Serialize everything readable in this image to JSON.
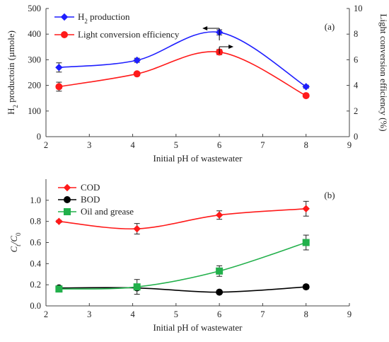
{
  "chart_data": [
    {
      "type": "line",
      "panel_label": "(a)",
      "xlabel": "Initial pH of wastewater",
      "ylabel": "H",
      "ylabel_sub": "2",
      "ylabel_rest": " productoin (µmole)",
      "y2label": "Light conversion efficiency (%)",
      "xlim": [
        2,
        9
      ],
      "xticks": [
        2,
        3,
        4,
        5,
        6,
        7,
        8,
        9
      ],
      "ylim": [
        0,
        500
      ],
      "yticks": [
        0,
        100,
        200,
        300,
        400,
        500
      ],
      "y2lim": [
        0,
        10
      ],
      "y2ticks": [
        0,
        2,
        4,
        6,
        8,
        10
      ],
      "legend_position": "top-left",
      "series": [
        {
          "name": "H",
          "name_sub": "2",
          "name_rest": " production",
          "axis": "left",
          "color": "#1f1fff",
          "marker": "diamond",
          "x": [
            2.3,
            4.1,
            6.0,
            8.0
          ],
          "y": [
            270,
            298,
            407,
            195
          ],
          "err": [
            18,
            8,
            10,
            6
          ]
        },
        {
          "name": "Light conversion efficiency",
          "axis": "right",
          "color": "#ff1a1a",
          "marker": "circle",
          "x": [
            2.3,
            4.1,
            6.0,
            8.0
          ],
          "y": [
            3.9,
            4.9,
            6.6,
            3.2
          ],
          "err": [
            0.35,
            0.15,
            0.2,
            0.1
          ]
        }
      ]
    },
    {
      "type": "line",
      "panel_label": "(b)",
      "xlabel": "Initial pH of wastewater",
      "ylabel": "C",
      "ylabel_sub1": "t",
      "ylabel_mid": "/C",
      "ylabel_sub2": "0",
      "xlim": [
        2,
        9
      ],
      "xticks": [
        2,
        3,
        4,
        5,
        6,
        7,
        8,
        9
      ],
      "ylim": [
        0,
        1.2
      ],
      "yticks": [
        "0.0",
        "0.2",
        "0.4",
        "0.6",
        "0.8",
        "1.0"
      ],
      "legend_position": "top-left",
      "series": [
        {
          "name": "COD",
          "color": "#ff1a1a",
          "marker": "diamond",
          "x": [
            2.3,
            4.1,
            6.0,
            8.0
          ],
          "y": [
            0.8,
            0.73,
            0.86,
            0.92
          ],
          "err": [
            0.01,
            0.05,
            0.04,
            0.07
          ]
        },
        {
          "name": "BOD",
          "color": "#000000",
          "marker": "circle",
          "x": [
            2.3,
            4.1,
            6.0,
            8.0
          ],
          "y": [
            0.17,
            0.17,
            0.13,
            0.18
          ],
          "err": [
            0.01,
            0.01,
            0.01,
            0.02
          ]
        },
        {
          "name": "Oil and grease",
          "color": "#22b04b",
          "marker": "square",
          "x": [
            2.3,
            4.1,
            6.0,
            8.0
          ],
          "y": [
            0.16,
            0.18,
            0.33,
            0.6
          ],
          "err": [
            0.01,
            0.07,
            0.05,
            0.07
          ]
        }
      ]
    }
  ]
}
